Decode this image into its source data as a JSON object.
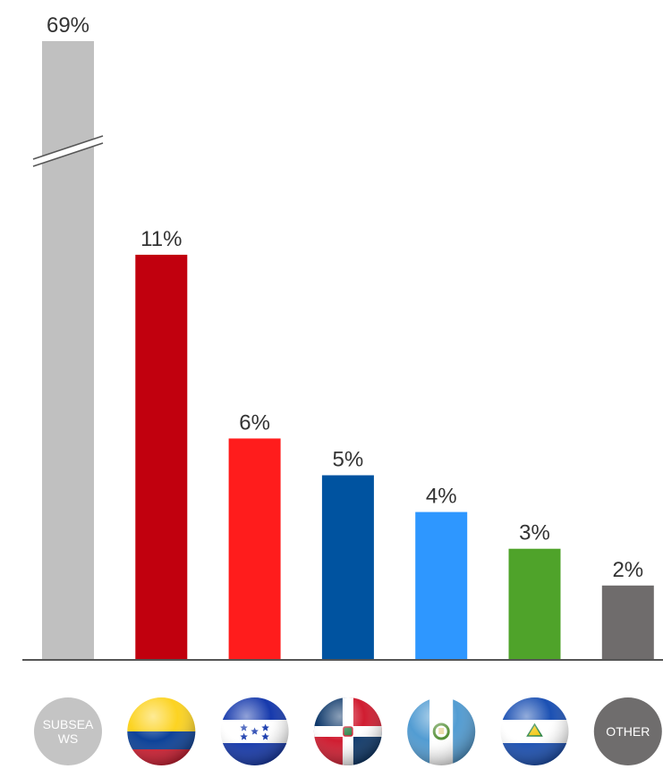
{
  "chart_data": {
    "type": "bar",
    "categories": [
      "SUBSEA WS",
      "Colombia",
      "Honduras",
      "Dominican Republic",
      "Guatemala",
      "El Salvador",
      "OTHER"
    ],
    "values": [
      69,
      11,
      6,
      5,
      4,
      3,
      2
    ],
    "value_labels": [
      "69%",
      "11%",
      "6%",
      "5%",
      "4%",
      "3%",
      "2%"
    ],
    "icons": [
      {
        "kind": "label-circle",
        "text_lines": [
          "SUBSEA",
          "WS"
        ],
        "color": "#c4c4c4"
      },
      {
        "kind": "flag",
        "flag": "colombia-flag-icon"
      },
      {
        "kind": "flag",
        "flag": "honduras-flag-icon"
      },
      {
        "kind": "flag",
        "flag": "dominican-republic-flag-icon"
      },
      {
        "kind": "flag",
        "flag": "guatemala-flag-icon"
      },
      {
        "kind": "flag",
        "flag": "el-salvador-flag-icon"
      },
      {
        "kind": "label-circle",
        "text_lines": [
          "OTHER"
        ],
        "color": "#6f6d6d"
      }
    ],
    "colors": [
      "#c0c0c0",
      "#c1000e",
      "#ff1c1c",
      "#0053a0",
      "#2e97ff",
      "#4fa32a",
      "#6f6c6c"
    ],
    "axis_break": {
      "series_index": 0
    },
    "ylim": [
      0,
      11
    ],
    "grid": false,
    "title": "",
    "xlabel": "",
    "ylabel": ""
  }
}
